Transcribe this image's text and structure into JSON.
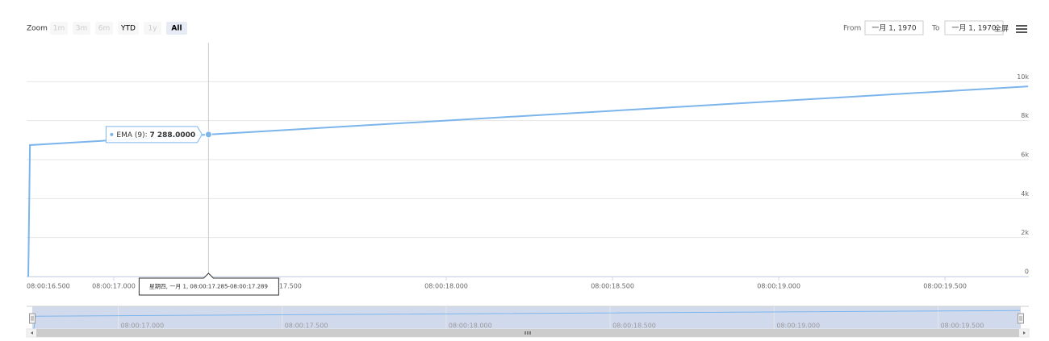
{
  "chart_data": {
    "type": "line",
    "range_selector": {
      "label": "Zoom",
      "buttons": [
        {
          "label": "1m",
          "state": "disabled"
        },
        {
          "label": "3m",
          "state": "disabled"
        },
        {
          "label": "6m",
          "state": "disabled"
        },
        {
          "label": "YTD",
          "state": "normal"
        },
        {
          "label": "1y",
          "state": "disabled"
        },
        {
          "label": "All",
          "state": "selected"
        }
      ],
      "from_label": "From",
      "from": "一月 1, 1970",
      "to_label": "To",
      "to": "一月 1, 1970",
      "fullscreen": "全屏"
    },
    "x": [
      16.743,
      16.748,
      17.285,
      19.75
    ],
    "series": [
      {
        "name": "EMA (9)",
        "color": "#7cb5ec",
        "values": [
          0,
          6745,
          7288,
          9760
        ],
        "value_labels": [
          null,
          null,
          "7 288.0000",
          null
        ]
      }
    ],
    "tooltip_header": "星期四, 一月 1, 08:00:17.285-08:00:17.289",
    "xlim": [
      16.738,
      19.752
    ],
    "xticks": [
      {
        "value": 16.5,
        "label": "08:00:16.500"
      },
      {
        "value": 17,
        "label": "08:00:17.000"
      },
      {
        "value": 17.5,
        "label": "08:00:17.500"
      },
      {
        "value": 18,
        "label": "08:00:18.000"
      },
      {
        "value": 18.5,
        "label": "08:00:18.500"
      },
      {
        "value": 19,
        "label": "08:00:19.000"
      },
      {
        "value": 19.5,
        "label": "08:00:19.500"
      }
    ],
    "ylim": [
      0,
      12000
    ],
    "yticks": [
      0,
      {
        "value": 2000,
        "label": "2k"
      },
      {
        "value": 4000,
        "label": "4k"
      },
      {
        "value": 6000,
        "label": "6k"
      },
      {
        "value": 8000,
        "label": "8k"
      },
      {
        "value": 10000,
        "label": "10k"
      }
    ],
    "grid": true,
    "navigator": true
  }
}
